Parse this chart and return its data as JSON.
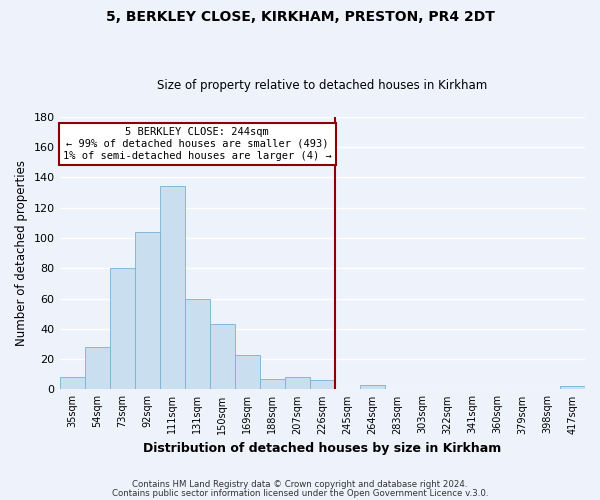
{
  "title": "5, BERKLEY CLOSE, KIRKHAM, PRESTON, PR4 2DT",
  "subtitle": "Size of property relative to detached houses in Kirkham",
  "xlabel": "Distribution of detached houses by size in Kirkham",
  "ylabel": "Number of detached properties",
  "footer_lines": [
    "Contains HM Land Registry data © Crown copyright and database right 2024.",
    "Contains public sector information licensed under the Open Government Licence v.3.0."
  ],
  "bin_labels": [
    "35sqm",
    "54sqm",
    "73sqm",
    "92sqm",
    "111sqm",
    "131sqm",
    "150sqm",
    "169sqm",
    "188sqm",
    "207sqm",
    "226sqm",
    "245sqm",
    "264sqm",
    "283sqm",
    "303sqm",
    "322sqm",
    "341sqm",
    "360sqm",
    "379sqm",
    "398sqm",
    "417sqm"
  ],
  "bar_heights": [
    8,
    28,
    80,
    104,
    134,
    60,
    43,
    23,
    7,
    8,
    6,
    0,
    3,
    0,
    0,
    0,
    0,
    0,
    0,
    0,
    2
  ],
  "bar_color": "#c9dff0",
  "bar_edge_color": "#7ab0d4",
  "vline_x_label": "245sqm",
  "vline_color": "#8b0000",
  "annotation_text": "5 BERKLEY CLOSE: 244sqm\n← 99% of detached houses are smaller (493)\n1% of semi-detached houses are larger (4) →",
  "annotation_box_edge": "#8b0000",
  "ylim": [
    0,
    180
  ],
  "yticks": [
    0,
    20,
    40,
    60,
    80,
    100,
    120,
    140,
    160,
    180
  ],
  "background_color": "#eef2fa",
  "grid_color": "#ffffff",
  "title_fontsize": 10,
  "subtitle_fontsize": 8.5
}
